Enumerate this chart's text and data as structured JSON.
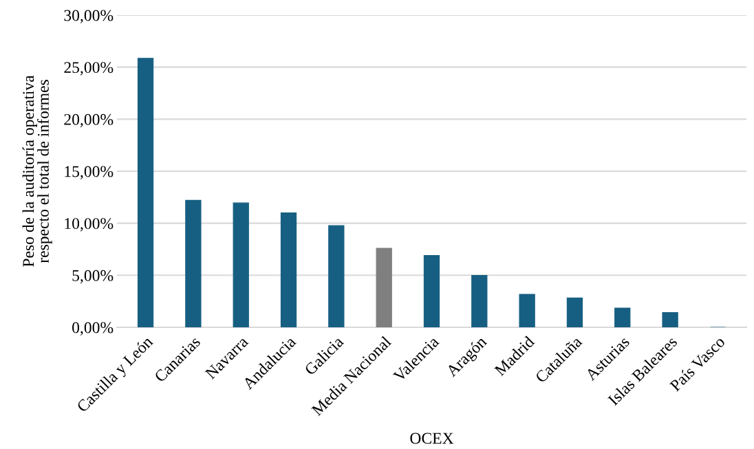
{
  "chart_data": {
    "type": "bar",
    "xlabel": "OCEX",
    "ylabel": "Peso de la auditoría operativa\nrespecto el total de informes",
    "categories": [
      "Castilla y León",
      "Canarias",
      "Navarra",
      "Andalucia",
      "Galicia",
      "Media Nacional",
      "Valencia",
      "Aragón",
      "Madrid",
      "Cataluña",
      "Asturias",
      "Islas Baleares",
      "País Vasco"
    ],
    "values": [
      25.85,
      12.2,
      11.95,
      11.0,
      9.77,
      7.6,
      6.9,
      4.98,
      3.17,
      2.82,
      1.85,
      1.41,
      0
    ],
    "colors": [
      "#175f82",
      "#175f82",
      "#175f82",
      "#175f82",
      "#175f82",
      "#7f7f7f",
      "#175f82",
      "#175f82",
      "#175f82",
      "#175f82",
      "#175f82",
      "#175f82",
      "#175f82"
    ],
    "ylim": [
      0,
      30
    ],
    "yticks": [
      {
        "value": 0,
        "label": "0,00%"
      },
      {
        "value": 5,
        "label": "5,00%"
      },
      {
        "value": 10,
        "label": "10,00%"
      },
      {
        "value": 15,
        "label": "15,00%"
      },
      {
        "value": 20,
        "label": "20,00%"
      },
      {
        "value": 25,
        "label": "25,00%"
      },
      {
        "value": 30,
        "label": "30,00%"
      }
    ],
    "grid": "y"
  }
}
